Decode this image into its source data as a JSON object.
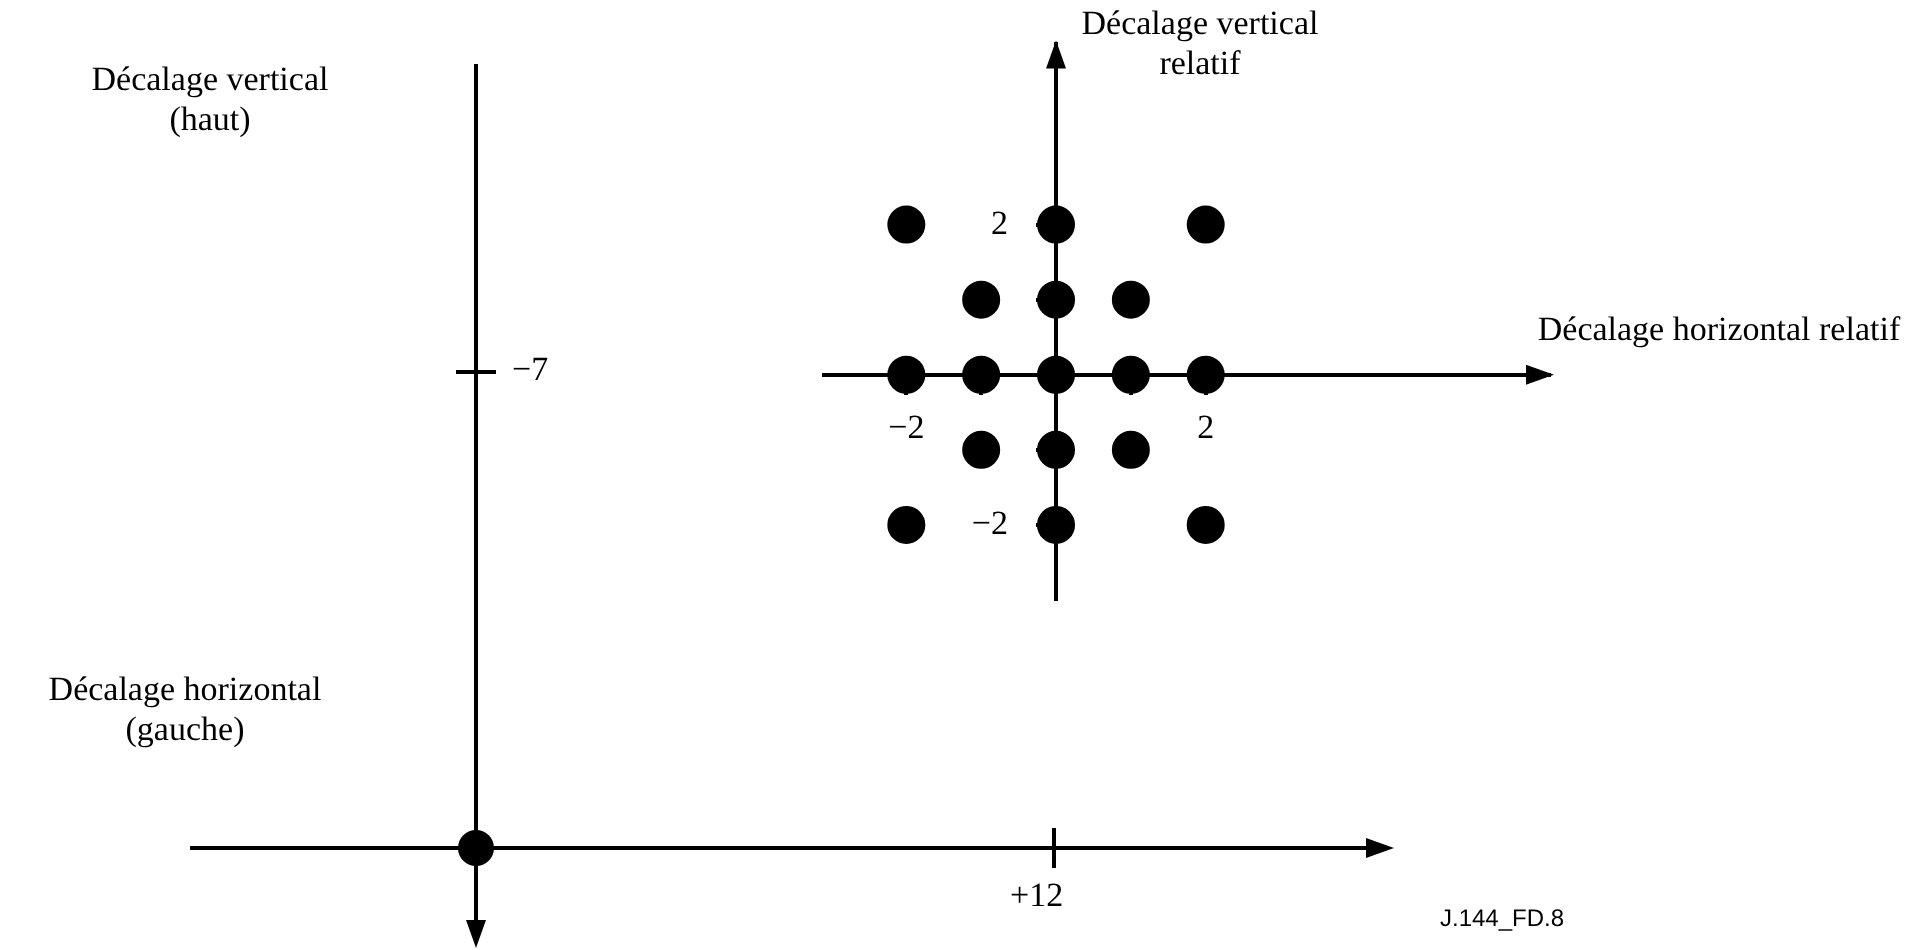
{
  "chart_data": {
    "type": "scatter",
    "xlabel": "Décalage horizontal relatif",
    "ylabel": "Décalage vertical relatif",
    "xlim": [
      -3.1,
      6.6
    ],
    "xticks": [
      {
        "value": -2,
        "label": "−2"
      },
      {
        "value": -1,
        "label": null
      },
      {
        "value": 1,
        "label": null
      },
      {
        "value": 2,
        "label": "2"
      }
    ],
    "ylim": [
      -3,
      4.4
    ],
    "yticks": [
      {
        "value": -2,
        "label": "−2"
      },
      {
        "value": -1,
        "label": null
      },
      {
        "value": 1,
        "label": null
      },
      {
        "value": 2,
        "label": "2"
      }
    ],
    "series": [
      {
        "color": "#000000",
        "x": [
          -2,
          2,
          -1,
          0,
          1,
          -2,
          -1,
          0,
          1,
          2,
          -1,
          0,
          1,
          -2,
          2,
          0,
          0
        ],
        "values": [
          2,
          2,
          1,
          1,
          1,
          0,
          0,
          0,
          0,
          0,
          -1,
          -1,
          -1,
          -2,
          -2,
          2,
          -2
        ]
      }
    ],
    "marker": "circle",
    "grid": false,
    "legend": false,
    "annotations": [
      "Décalage horizontal (gauche)",
      "Décalage vertical (haut)",
      "+12",
      "−7",
      "J.144_FD.8"
    ]
  }
}
